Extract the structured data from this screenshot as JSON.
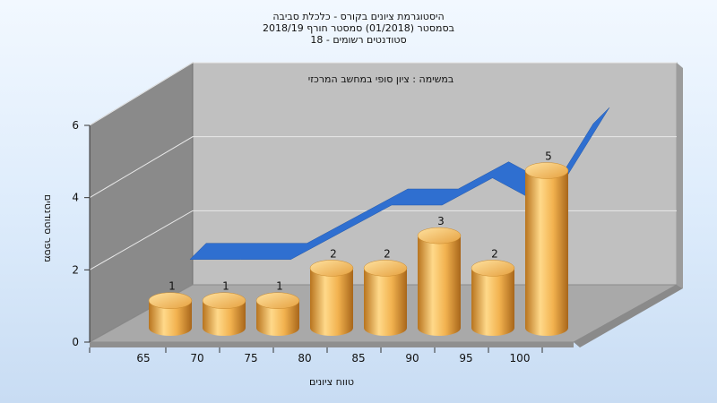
{
  "header": {
    "title_lines": [
      "היסטוגרמת ציונים בקורס - כלכלת סביבה",
      "בסמסטר (01/2018) סמסטר חורף 2018/19",
      "סטודנטים רשומים - 18"
    ]
  },
  "chart_data": {
    "type": "bar",
    "title": "היסטוגרמת ציונים בקורס - כלכלת סביבה",
    "subtitle": "במשימה : ציון סופי במחשב המרכזי",
    "xlabel": "טווח ציונים",
    "ylabel": "מספר סטודנטים",
    "categories": [
      "65",
      "70",
      "75",
      "80",
      "85",
      "90",
      "95",
      "100"
    ],
    "x_tick_labels": [
      "65",
      "70",
      "75",
      "80",
      "85",
      "90",
      "95",
      "100"
    ],
    "values": [
      1,
      1,
      1,
      2,
      2,
      3,
      2,
      5
    ],
    "data_labels": [
      "1",
      "1",
      "1",
      "2",
      "2",
      "3",
      "2",
      "5"
    ],
    "y_ticks": [
      0,
      2,
      4,
      6
    ],
    "y_tick_labels": [
      "0",
      "2",
      "4",
      "6"
    ],
    "ylim": [
      0,
      6
    ],
    "grid": true,
    "legend": "none",
    "ribbon_trend_values": [
      1,
      1,
      1,
      2,
      3,
      3,
      4,
      3,
      6
    ],
    "colors": {
      "bar_light": "#ffd98a",
      "bar_mid": "#f2b24f",
      "bar_dark": "#b8741e",
      "ribbon": "#2f6fd0",
      "back_wall": "#c0c0c0",
      "left_wall": "#8a8a8a",
      "floor": "#a9a9a9"
    }
  }
}
